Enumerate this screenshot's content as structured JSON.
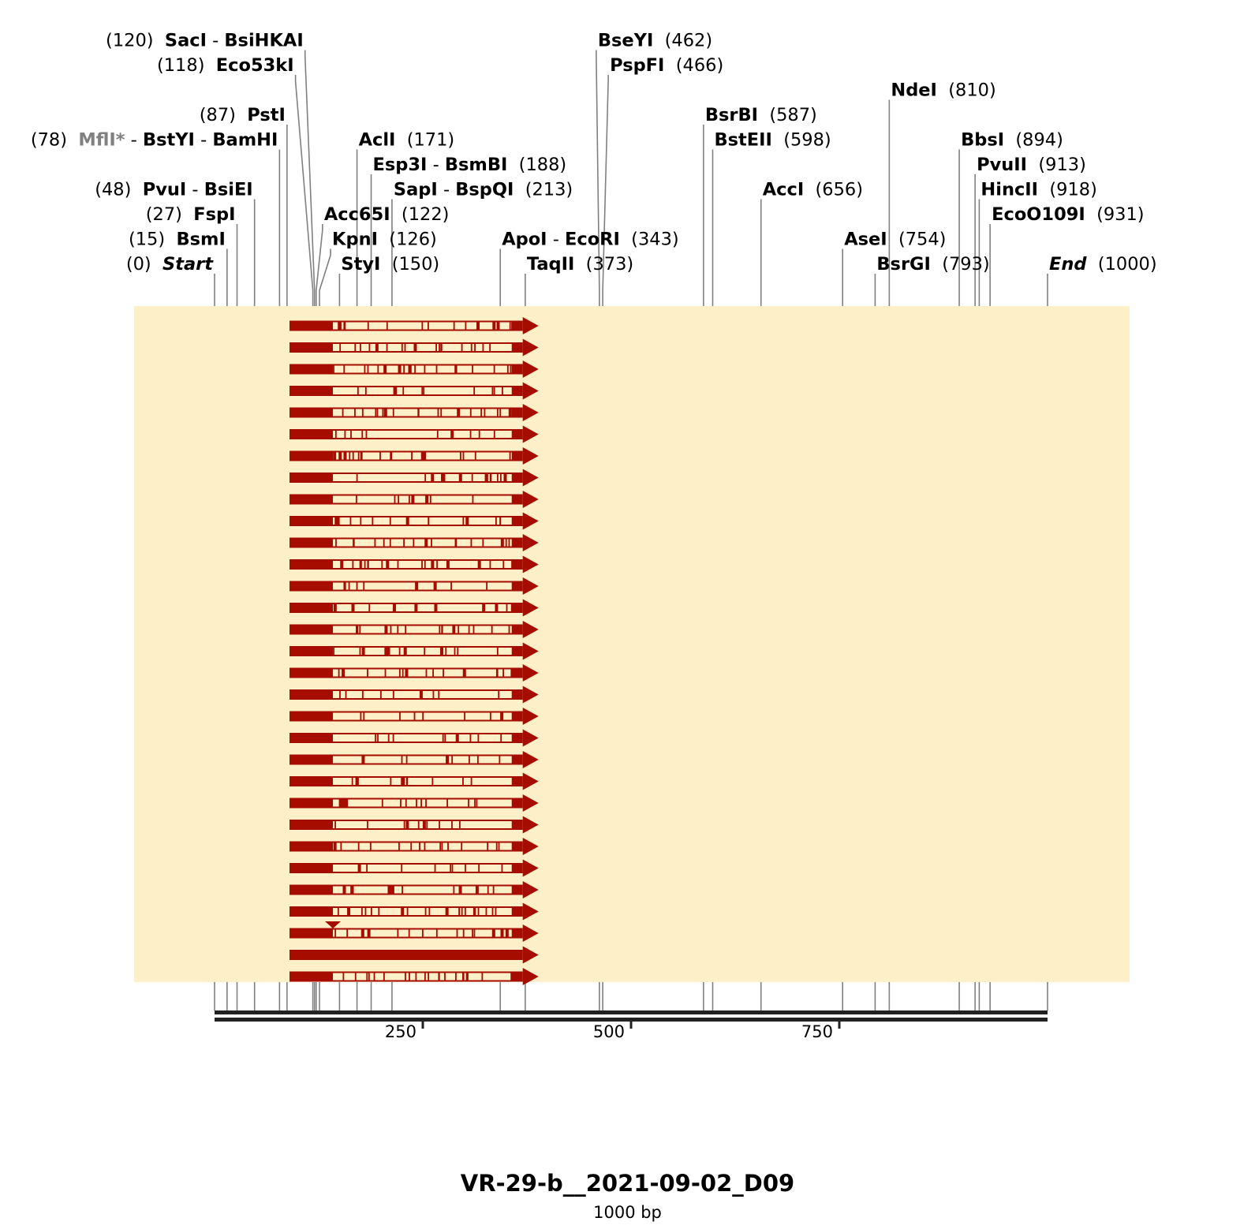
{
  "title": "VR-29-b__2021-09-02_D09",
  "subtitle": "1000 bp",
  "sequence_length": 1000,
  "colors": {
    "panel": "#fdefc7",
    "feature": "#a60c00",
    "site_line": "#808080",
    "ruler": "#222222",
    "label_bg": "#fffdf2"
  },
  "ruler": {
    "ticks": [
      250,
      500,
      750
    ]
  },
  "sites": [
    {
      "pos": 0,
      "names": [
        "Start"
      ],
      "italic": true
    },
    {
      "pos": 15,
      "names": [
        "BsmI"
      ]
    },
    {
      "pos": 27,
      "names": [
        "FspI"
      ]
    },
    {
      "pos": 48,
      "names": [
        "PvuI",
        "BsiEI"
      ]
    },
    {
      "pos": 78,
      "names": [
        "MflI*",
        "BstYI",
        "BamHI"
      ],
      "grey_first": true
    },
    {
      "pos": 87,
      "names": [
        "PstI"
      ]
    },
    {
      "pos": 118,
      "names": [
        "Eco53kI"
      ]
    },
    {
      "pos": 120,
      "names": [
        "SacI",
        "BsiHKAI"
      ]
    },
    {
      "pos": 122,
      "names": [
        "Acc65I"
      ]
    },
    {
      "pos": 126,
      "names": [
        "KpnI"
      ]
    },
    {
      "pos": 150,
      "names": [
        "StyI"
      ]
    },
    {
      "pos": 171,
      "names": [
        "AclI"
      ]
    },
    {
      "pos": 188,
      "names": [
        "Esp3I",
        "BsmBI"
      ]
    },
    {
      "pos": 213,
      "names": [
        "SapI",
        "BspQI"
      ]
    },
    {
      "pos": 343,
      "names": [
        "ApoI",
        "EcoRI"
      ]
    },
    {
      "pos": 373,
      "names": [
        "TaqII"
      ]
    },
    {
      "pos": 462,
      "names": [
        "BseYI"
      ]
    },
    {
      "pos": 466,
      "names": [
        "PspFI"
      ]
    },
    {
      "pos": 587,
      "names": [
        "BsrBI"
      ]
    },
    {
      "pos": 598,
      "names": [
        "BstEII"
      ]
    },
    {
      "pos": 656,
      "names": [
        "AccI"
      ]
    },
    {
      "pos": 754,
      "names": [
        "AseI"
      ]
    },
    {
      "pos": 793,
      "names": [
        "BsrGI"
      ]
    },
    {
      "pos": 810,
      "names": [
        "NdeI"
      ]
    },
    {
      "pos": 894,
      "names": [
        "BbsI"
      ]
    },
    {
      "pos": 913,
      "names": [
        "PvuII"
      ]
    },
    {
      "pos": 918,
      "names": [
        "HincII"
      ]
    },
    {
      "pos": 931,
      "names": [
        "EcoO109I"
      ]
    },
    {
      "pos": 1000,
      "names": [
        "End"
      ],
      "italic": true
    }
  ],
  "alignment": {
    "start": 90,
    "end": 370,
    "read_count": 31,
    "deletion_row": 28,
    "solid_row": 29
  }
}
